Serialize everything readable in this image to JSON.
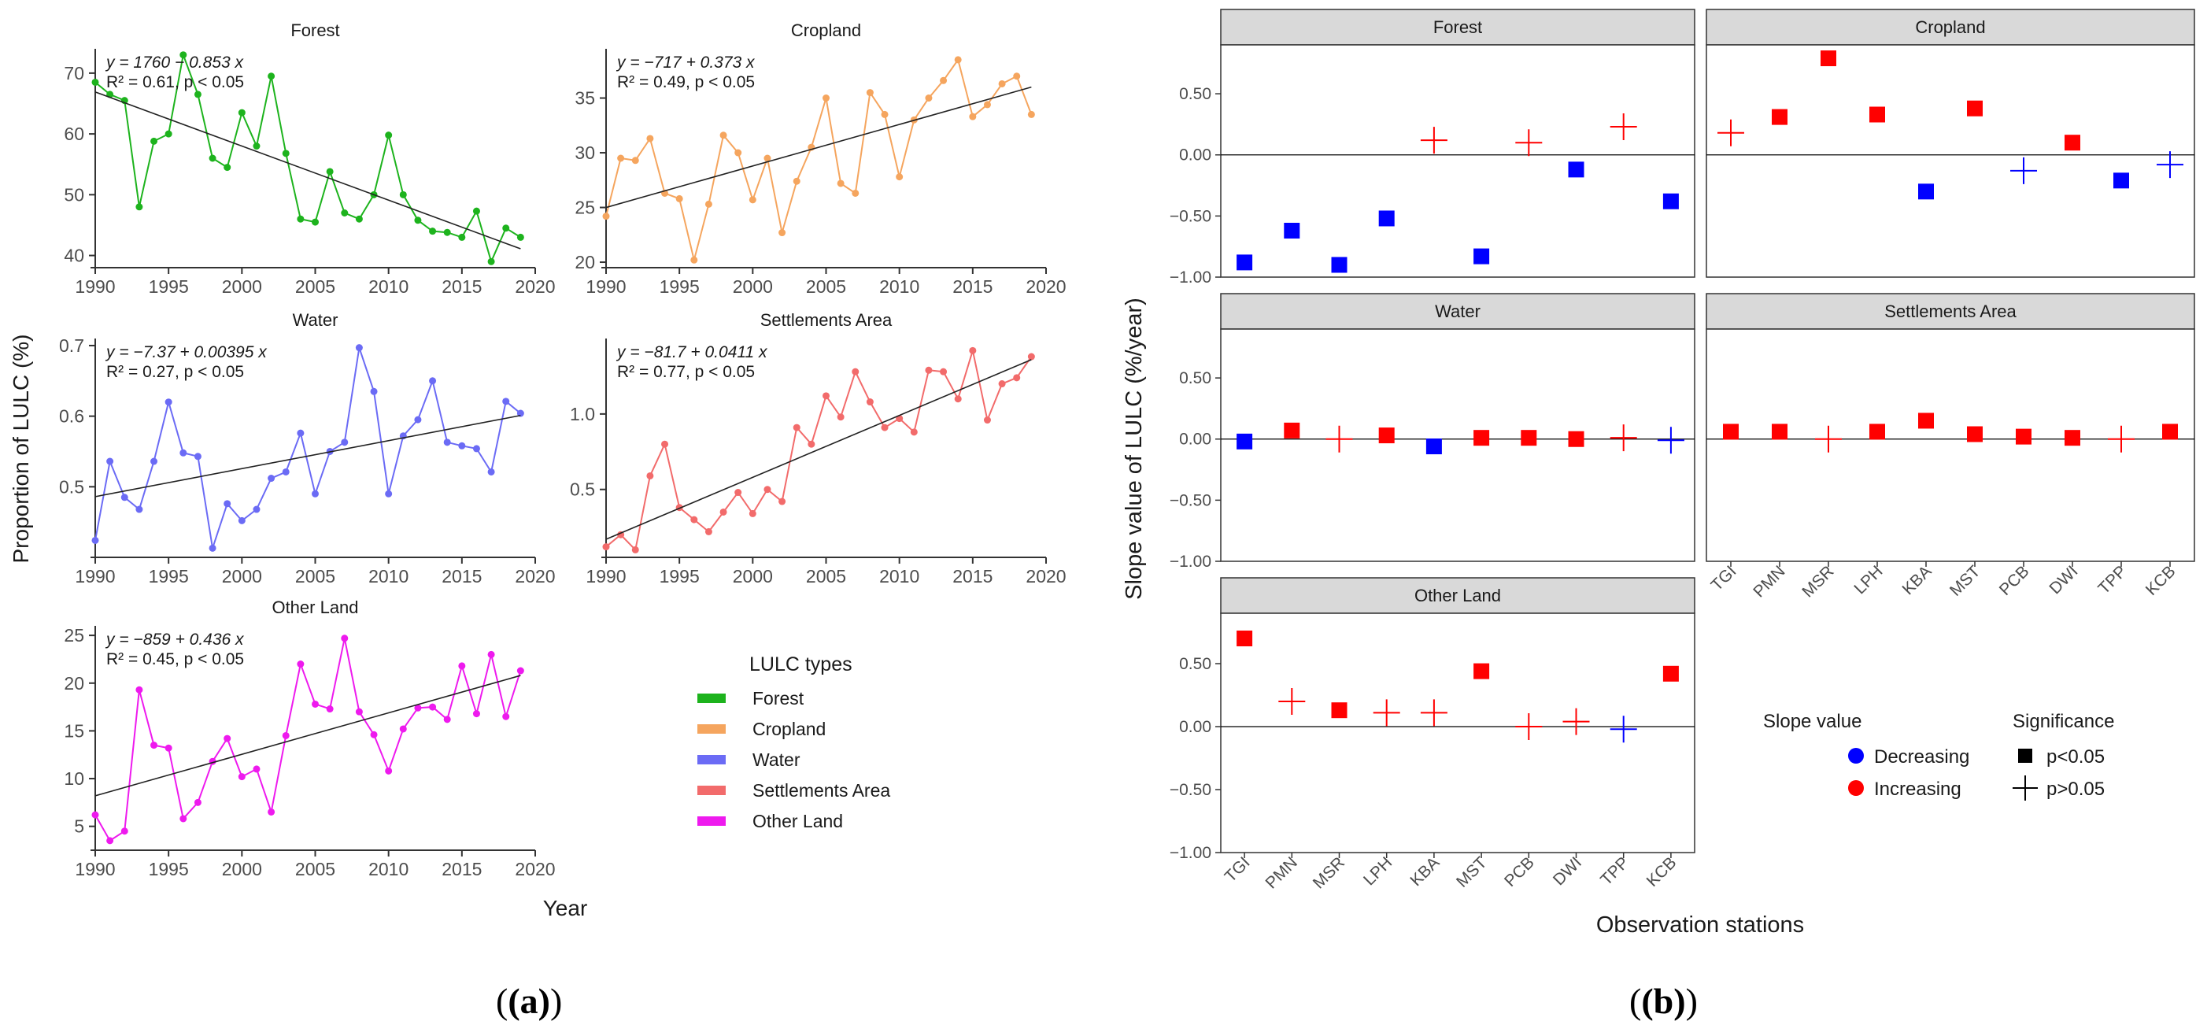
{
  "chart_data": [
    {
      "type": "line",
      "title": "(a)",
      "ylabel": "Proportion of LULC (%)",
      "xlabel": "Year",
      "legend_title": "LULC types",
      "x": [
        1990,
        1991,
        1992,
        1993,
        1994,
        1995,
        1996,
        1997,
        1998,
        1999,
        2000,
        2001,
        2002,
        2003,
        2004,
        2005,
        2006,
        2007,
        2008,
        2009,
        2010,
        2011,
        2012,
        2013,
        2014,
        2015,
        2016,
        2017,
        2018,
        2019
      ],
      "xticks": [
        "1990",
        "1995",
        "2000",
        "2005",
        "2010",
        "2015",
        "2020"
      ],
      "xlim": [
        1990,
        2020
      ],
      "series": [
        {
          "name": "Forest",
          "color": "#1db31d",
          "values": [
            68.5,
            66.5,
            65.5,
            48,
            58.8,
            60,
            73,
            66.5,
            56,
            54.5,
            63.5,
            58,
            69.5,
            56.8,
            46,
            45.5,
            53.8,
            47,
            46,
            50,
            59.8,
            50,
            45.8,
            44,
            43.8,
            43,
            47.3,
            39,
            44.5,
            43
          ],
          "ylim": [
            38,
            74
          ],
          "yticks": [
            40,
            50,
            60,
            70
          ],
          "ytick_labels": [
            "40",
            "50",
            "60",
            "70"
          ],
          "equation": "y = 1760 − 0.853 x",
          "r2_label": "R² = 0.61, p < 0.05",
          "trend_values": [
            66.9,
            41.1
          ]
        },
        {
          "name": "Cropland",
          "color": "#f5a55e",
          "values": [
            24.2,
            29.5,
            29.3,
            31.3,
            26.3,
            25.8,
            20.2,
            25.3,
            31.6,
            30,
            25.7,
            29.5,
            22.7,
            27.4,
            30.5,
            35,
            27.2,
            26.3,
            35.5,
            33.5,
            27.8,
            33,
            35,
            36.6,
            38.5,
            33.3,
            34.4,
            36.3,
            37,
            33.5
          ],
          "ylim": [
            19.5,
            39.5
          ],
          "yticks": [
            20,
            25,
            30,
            35
          ],
          "ytick_labels": [
            "20",
            "25",
            "30",
            "35"
          ],
          "equation": "y = −717 + 0.373 x",
          "r2_label": "R² = 0.49, p < 0.05",
          "trend_values": [
            25.0,
            36.0
          ]
        },
        {
          "name": "Water",
          "color": "#6b6bf5",
          "values": [
            0.424,
            0.536,
            0.485,
            0.468,
            0.536,
            0.62,
            0.548,
            0.543,
            0.413,
            0.476,
            0.452,
            0.468,
            0.512,
            0.521,
            0.576,
            0.49,
            0.55,
            0.563,
            0.697,
            0.635,
            0.49,
            0.572,
            0.595,
            0.65,
            0.563,
            0.558,
            0.554,
            0.521,
            0.621,
            0.604
          ],
          "ylim": [
            0.4,
            0.71
          ],
          "yticks": [
            0.5,
            0.6,
            0.7
          ],
          "ytick_labels": [
            "0.5",
            "0.6",
            "0.7"
          ],
          "equation": "y = −7.37 + 0.00395 x",
          "r2_label": "R² = 0.27, p < 0.05",
          "trend_values": [
            0.486,
            0.601
          ]
        },
        {
          "name": "Settlements Area",
          "color": "#f26b6b",
          "values": [
            0.12,
            0.2,
            0.1,
            0.59,
            0.8,
            0.38,
            0.3,
            0.22,
            0.35,
            0.48,
            0.34,
            0.5,
            0.42,
            0.91,
            0.8,
            1.12,
            0.98,
            1.28,
            1.08,
            0.91,
            0.97,
            0.88,
            1.29,
            1.28,
            1.1,
            1.42,
            0.96,
            1.2,
            1.24,
            1.38
          ],
          "ylim": [
            0.05,
            1.5
          ],
          "yticks": [
            0.5,
            1.0
          ],
          "ytick_labels": [
            "0.5",
            "1.0"
          ],
          "equation": "y = −81.7 + 0.0411 x",
          "r2_label": "R² = 0.77, p < 0.05",
          "trend_values": [
            0.17,
            1.36
          ]
        },
        {
          "name": "Other Land",
          "color": "#ee1aee",
          "values": [
            6.2,
            3.5,
            4.5,
            19.3,
            13.5,
            13.2,
            5.8,
            7.5,
            11.8,
            14.2,
            10.2,
            11,
            6.5,
            14.5,
            22,
            17.8,
            17.3,
            24.7,
            17,
            14.6,
            10.8,
            15.2,
            17.4,
            17.5,
            16.2,
            21.8,
            16.8,
            23,
            16.5,
            21.3
          ],
          "ylim": [
            2.5,
            26
          ],
          "yticks": [
            5,
            10,
            15,
            20,
            25
          ],
          "ytick_labels": [
            "5",
            "10",
            "15",
            "20",
            "25"
          ],
          "equation": "y = −859 + 0.436 x",
          "r2_label": "R² = 0.45, p < 0.05",
          "trend_values": [
            8.2,
            20.8
          ]
        }
      ]
    },
    {
      "type": "scatter",
      "title": "(b)",
      "ylabel": "Slope value of LULC (%/year)",
      "xlabel": "Observation stations",
      "categories": [
        "TGI",
        "PMN",
        "MSR",
        "LPH",
        "KBA",
        "MST",
        "PCB",
        "DWI",
        "TPP",
        "KCB"
      ],
      "ylim": [
        -1.0,
        0.9
      ],
      "yticks": [
        -1.0,
        -0.5,
        0.0,
        0.5
      ],
      "ytick_labels": [
        "−1.00",
        "−0.50",
        "0.00",
        "0.50"
      ],
      "legend": {
        "slope_title": "Slope value",
        "significance_title": "Significance",
        "decreasing_label": "Decreasing",
        "increasing_label": "Increasing",
        "sig_label": "p<0.05",
        "nonsig_label": "p>0.05",
        "decreasing_color": "#0000ff",
        "increasing_color": "#ff0000"
      },
      "series": [
        {
          "name": "Forest",
          "values": [
            -0.88,
            -0.62,
            -0.9,
            -0.52,
            0.12,
            -0.83,
            0.1,
            -0.12,
            0.23,
            -0.38
          ],
          "significant": [
            true,
            true,
            true,
            true,
            false,
            true,
            false,
            true,
            false,
            true
          ]
        },
        {
          "name": "Cropland",
          "values": [
            0.18,
            0.31,
            0.79,
            0.33,
            -0.3,
            0.38,
            -0.13,
            0.1,
            -0.21,
            -0.08
          ],
          "significant": [
            false,
            true,
            true,
            true,
            true,
            true,
            false,
            true,
            true,
            false
          ]
        },
        {
          "name": "Water",
          "values": [
            -0.02,
            0.07,
            0.0,
            0.03,
            -0.06,
            0.01,
            0.01,
            0.0,
            0.01,
            -0.01
          ],
          "significant": [
            true,
            true,
            false,
            true,
            true,
            true,
            true,
            true,
            false,
            false
          ]
        },
        {
          "name": "Settlements Area",
          "values": [
            0.06,
            0.06,
            0.0,
            0.06,
            0.15,
            0.04,
            0.02,
            0.01,
            0.0,
            0.06
          ],
          "significant": [
            true,
            true,
            false,
            true,
            true,
            true,
            true,
            true,
            false,
            true
          ]
        },
        {
          "name": "Other Land",
          "values": [
            0.7,
            0.2,
            0.13,
            0.11,
            0.11,
            0.44,
            0.0,
            0.04,
            -0.02,
            0.42
          ],
          "significant": [
            true,
            false,
            true,
            false,
            false,
            true,
            false,
            false,
            false,
            true
          ]
        }
      ]
    }
  ]
}
